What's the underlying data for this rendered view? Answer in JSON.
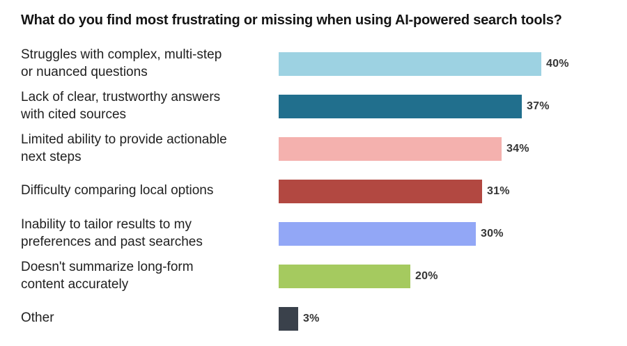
{
  "chart_data": {
    "type": "bar",
    "orientation": "horizontal",
    "title": "What do you find most frustrating or missing when using AI-powered search tools?",
    "categories": [
      "Struggles with complex, multi-step\nor nuanced questions",
      "Lack of clear, trustworthy answers\nwith cited sources",
      "Limited ability to provide actionable\nnext steps",
      "Difficulty comparing local options",
      "Inability to tailor results to my\npreferences and past searches",
      "Doesn't summarize long-form\ncontent accurately",
      "Other"
    ],
    "values": [
      40,
      37,
      34,
      31,
      30,
      20,
      3
    ],
    "value_labels": [
      "40%",
      "37%",
      "34%",
      "31%",
      "30%",
      "20%",
      "3%"
    ],
    "colors": [
      "#9dd2e2",
      "#216f8d",
      "#f4b1ae",
      "#b24841",
      "#92a7f6",
      "#a5ca5f",
      "#3a414b"
    ],
    "unit": "%",
    "xlim": [
      0,
      40
    ],
    "xlabel": "",
    "ylabel": "",
    "grid": "off",
    "legend": "none",
    "background_color": "#ffffff",
    "title_color": "#141414",
    "label_color": "#212121",
    "value_label_color": "#363636"
  }
}
